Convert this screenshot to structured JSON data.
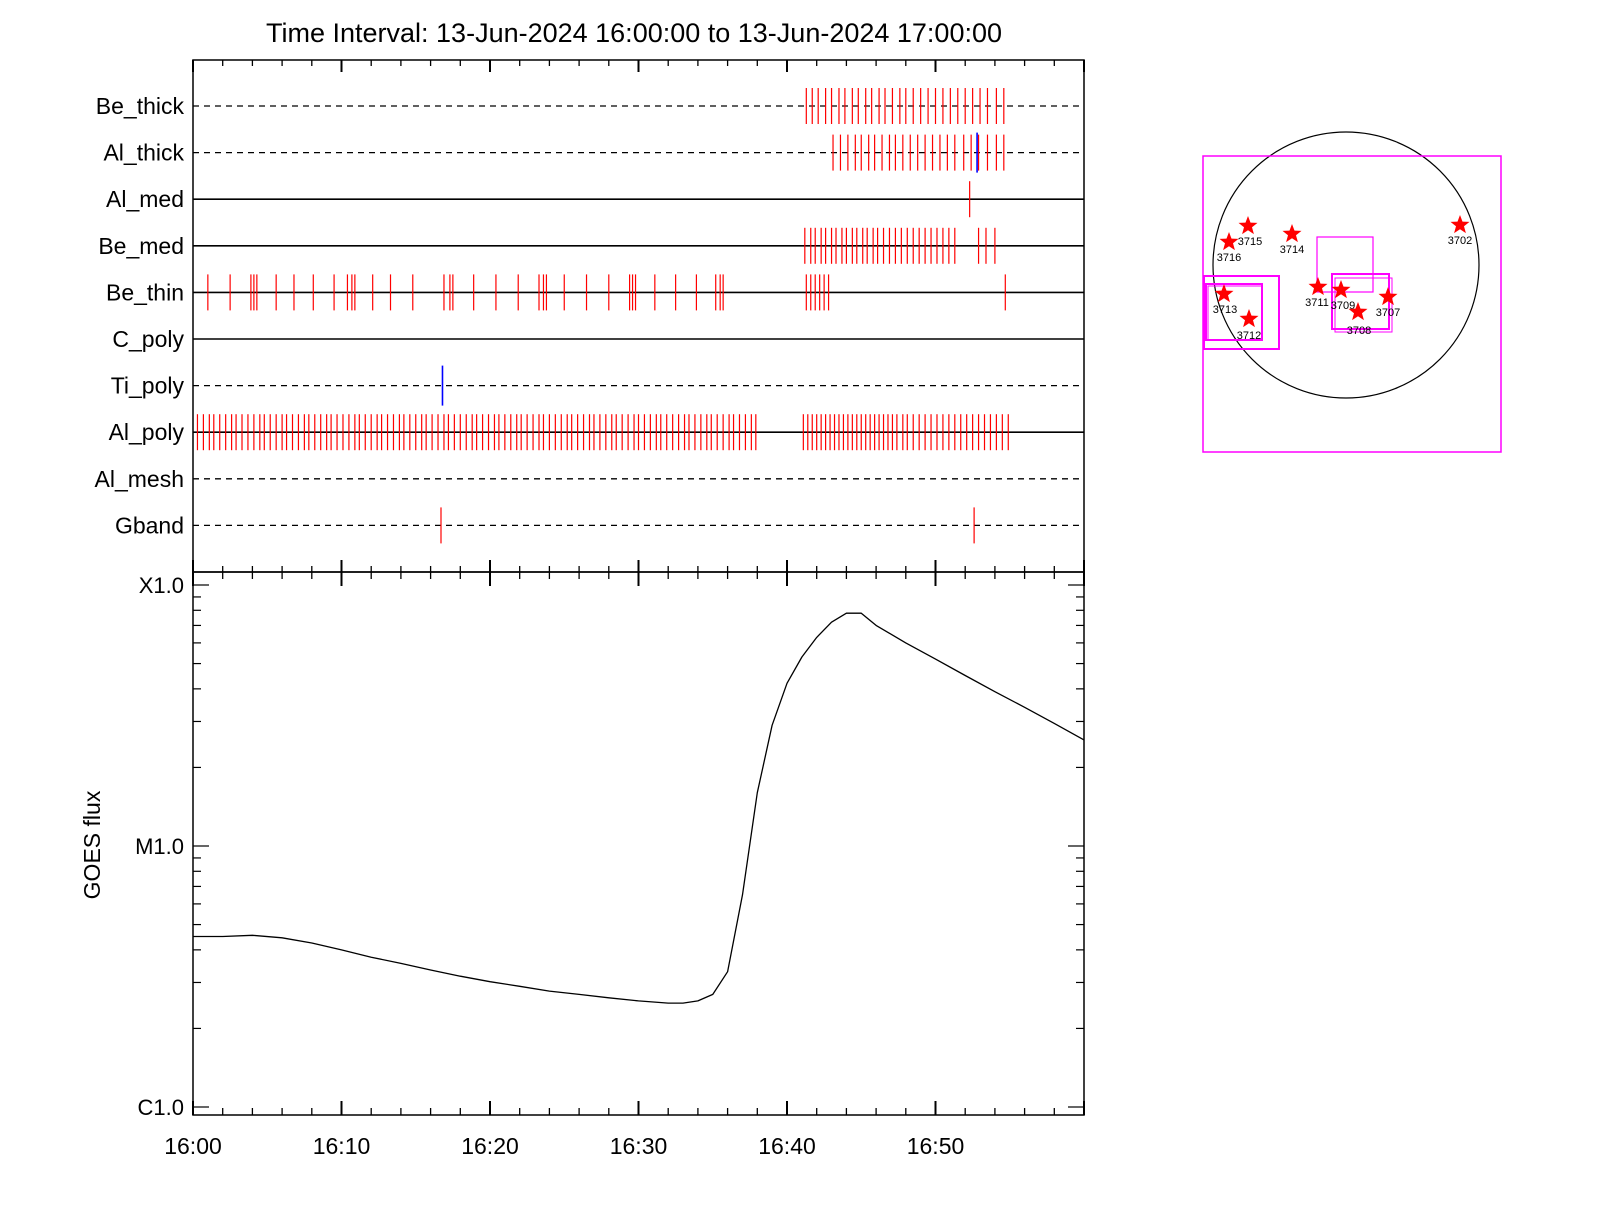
{
  "title": "Time Interval: 13-Jun-2024 16:00:00 to 13-Jun-2024 17:00:00",
  "chart_data": [
    {
      "type": "scatter",
      "subtype": "event-timeline",
      "time_range": [
        "16:00",
        "17:00"
      ],
      "channels": [
        {
          "name": "Be_thick",
          "line": "dashed",
          "red": [
            41.3,
            41.7,
            42.1,
            42.6,
            43.0,
            43.5,
            43.9,
            44.4,
            44.8,
            45.3,
            45.7,
            46.2,
            46.6,
            47.1,
            47.6,
            48.0,
            48.5,
            49.0,
            49.5,
            50.0,
            50.5,
            51.0,
            51.5,
            52.0,
            52.5,
            53.0,
            53.5,
            54.1,
            54.6
          ],
          "blue": []
        },
        {
          "name": "Al_thick",
          "line": "dashed",
          "red": [
            43.1,
            43.6,
            44.1,
            44.6,
            45.0,
            45.5,
            45.9,
            46.4,
            46.9,
            47.3,
            47.8,
            48.3,
            48.8,
            49.3,
            49.8,
            50.3,
            50.8,
            51.3,
            51.9,
            52.4,
            52.9,
            53.5,
            54.1,
            54.6
          ],
          "blue": [
            52.8
          ]
        },
        {
          "name": "Al_med",
          "line": "solid",
          "red": [
            52.3
          ],
          "blue": []
        },
        {
          "name": "Be_med",
          "line": "solid",
          "red": [
            41.2,
            41.6,
            41.9,
            42.3,
            42.6,
            43.0,
            43.3,
            43.7,
            44.0,
            44.4,
            44.7,
            45.1,
            45.4,
            45.8,
            46.1,
            46.5,
            46.9,
            47.3,
            47.7,
            48.1,
            48.5,
            48.9,
            49.3,
            49.7,
            50.1,
            50.5,
            50.9,
            51.3,
            52.9,
            53.4,
            54.0
          ],
          "blue": []
        },
        {
          "name": "Be_thin",
          "line": "solid",
          "red": [
            1.0,
            2.5,
            3.9,
            4.1,
            4.3,
            5.6,
            6.8,
            8.1,
            9.5,
            10.4,
            10.7,
            10.9,
            12.1,
            13.3,
            14.8,
            16.9,
            17.3,
            17.5,
            18.9,
            20.4,
            21.9,
            23.3,
            23.6,
            23.8,
            25.0,
            26.5,
            28.0,
            29.4,
            29.6,
            29.8,
            31.1,
            32.5,
            33.9,
            35.2,
            35.5,
            35.7,
            41.3,
            41.6,
            41.9,
            42.2,
            42.5,
            42.8,
            54.7
          ],
          "blue": []
        },
        {
          "name": "C_poly",
          "line": "solid",
          "red": [],
          "blue": []
        },
        {
          "name": "Ti_poly",
          "line": "dashed",
          "red": [],
          "blue": [
            16.8
          ]
        },
        {
          "name": "Al_poly",
          "line": "solid",
          "red": [
            0.3,
            0.7,
            1.1,
            1.4,
            1.8,
            2.2,
            2.6,
            2.9,
            3.3,
            3.7,
            4.1,
            4.5,
            4.8,
            5.2,
            5.6,
            6.0,
            6.3,
            6.7,
            7.1,
            7.5,
            7.8,
            8.2,
            8.6,
            9.0,
            9.3,
            9.7,
            10.1,
            10.5,
            10.9,
            11.2,
            11.6,
            12.0,
            12.4,
            12.7,
            13.1,
            13.5,
            13.9,
            14.2,
            14.6,
            15.0,
            15.4,
            15.7,
            16.1,
            16.5,
            16.9,
            17.2,
            17.6,
            18.0,
            18.4,
            18.8,
            19.1,
            19.5,
            19.9,
            20.3,
            20.6,
            21.0,
            21.4,
            21.8,
            22.1,
            22.5,
            22.9,
            23.3,
            23.6,
            24.0,
            24.4,
            24.8,
            25.2,
            25.5,
            25.9,
            26.3,
            26.7,
            27.0,
            27.4,
            27.8,
            28.2,
            28.5,
            28.9,
            29.3,
            29.7,
            30.0,
            30.4,
            30.8,
            31.2,
            31.5,
            31.9,
            32.3,
            32.7,
            33.1,
            33.4,
            33.8,
            34.2,
            34.6,
            34.9,
            35.3,
            35.7,
            36.1,
            36.4,
            36.8,
            37.2,
            37.6,
            37.9,
            41.1,
            41.4,
            41.7,
            42.0,
            42.3,
            42.6,
            42.9,
            43.2,
            43.5,
            43.8,
            44.1,
            44.4,
            44.7,
            45.0,
            45.3,
            45.6,
            45.9,
            46.2,
            46.5,
            46.8,
            47.1,
            47.4,
            47.8,
            48.1,
            48.5,
            48.9,
            49.3,
            49.7,
            50.1,
            50.5,
            50.9,
            51.3,
            51.7,
            52.1,
            52.5,
            52.9,
            53.3,
            53.7,
            54.1,
            54.5,
            54.9
          ],
          "blue": []
        },
        {
          "name": "Al_mesh",
          "line": "dashed",
          "red": [],
          "blue": []
        },
        {
          "name": "Gband",
          "line": "dashed",
          "red": [
            16.7,
            52.6
          ],
          "blue": []
        }
      ],
      "x_ticks": [
        "16:00",
        "16:10",
        "16:20",
        "16:30",
        "16:40",
        "16:50"
      ]
    },
    {
      "type": "line",
      "ylabel": "GOES flux",
      "yscale": "log",
      "y_ticks": [
        "X1.0",
        "M1.0",
        "C1.0"
      ],
      "ylim": [
        1e-06,
        0.0001
      ],
      "x_ticks": [
        "16:00",
        "16:10",
        "16:20",
        "16:30",
        "16:40",
        "16:50"
      ],
      "xlim": [
        0,
        60
      ],
      "series": [
        {
          "x": [
            0,
            2,
            4,
            6,
            8,
            10,
            12,
            14,
            16,
            18,
            20,
            22,
            24,
            26,
            28,
            30,
            32,
            33,
            34,
            35,
            36,
            37,
            38,
            39,
            40,
            41,
            42,
            43,
            44,
            45,
            46,
            48,
            50,
            52,
            54,
            56,
            58,
            60
          ],
          "y": [
            4.5e-06,
            4.5e-06,
            4.55e-06,
            4.45e-06,
            4.25e-06,
            4e-06,
            3.75e-06,
            3.55e-06,
            3.35e-06,
            3.17e-06,
            3.02e-06,
            2.9e-06,
            2.78e-06,
            2.7e-06,
            2.62e-06,
            2.55e-06,
            2.5e-06,
            2.5e-06,
            2.55e-06,
            2.7e-06,
            3.3e-06,
            6.5e-06,
            1.6e-05,
            2.9e-05,
            4.2e-05,
            5.3e-05,
            6.3e-05,
            7.2e-05,
            7.8e-05,
            7.8e-05,
            7e-05,
            6e-05,
            5.2e-05,
            4.5e-05,
            3.9e-05,
            3.4e-05,
            2.95e-05,
            2.55e-05
          ]
        }
      ]
    }
  ],
  "sun_map": {
    "disk_color": "#000000",
    "fov_color": "#ff00ff",
    "star_color": "#ff0000",
    "regions": [
      "3716",
      "3715",
      "3714",
      "3702",
      "3711",
      "3709",
      "3707",
      "3708",
      "3713",
      "3712"
    ]
  },
  "colors": {
    "red": "#ff0000",
    "blue": "#0000ff",
    "axis": "#000000"
  }
}
